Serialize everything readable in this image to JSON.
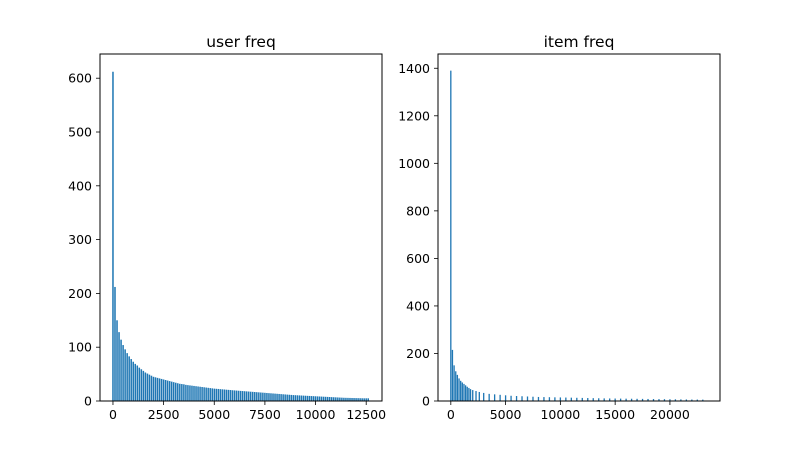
{
  "chart_data": [
    {
      "type": "bar",
      "title": "user freq",
      "xlabel": "",
      "ylabel": "",
      "xlim": [
        -640,
        13280
      ],
      "ylim": [
        0,
        645
      ],
      "xticks": [
        0,
        2500,
        5000,
        7500,
        10000,
        12500
      ],
      "xtick_labels": [
        "0",
        "2500",
        "5000",
        "7500",
        "10000",
        "12500"
      ],
      "yticks": [
        0,
        100,
        200,
        300,
        400,
        500,
        600
      ],
      "ytick_labels": [
        "0",
        "100",
        "200",
        "300",
        "400",
        "500",
        "600"
      ],
      "grid": false,
      "legend": "none",
      "bar_color": "#1f77b4",
      "bar_width": 75,
      "x": [
        0,
        100,
        200,
        300,
        400,
        500,
        600,
        700,
        800,
        900,
        1000,
        1100,
        1200,
        1300,
        1400,
        1500,
        1600,
        1700,
        1800,
        1900,
        2000,
        2100,
        2200,
        2300,
        2400,
        2500,
        2600,
        2700,
        2800,
        2900,
        3000,
        3100,
        3200,
        3300,
        3400,
        3500,
        3600,
        3700,
        3800,
        3900,
        4000,
        4100,
        4200,
        4300,
        4400,
        4500,
        4600,
        4700,
        4800,
        4900,
        5000,
        5100,
        5200,
        5300,
        5400,
        5500,
        5600,
        5700,
        5800,
        5900,
        6000,
        6100,
        6200,
        6300,
        6400,
        6500,
        6600,
        6700,
        6800,
        6900,
        7000,
        7100,
        7200,
        7300,
        7400,
        7500,
        7600,
        7700,
        7800,
        7900,
        8000,
        8100,
        8200,
        8300,
        8400,
        8500,
        8600,
        8700,
        8800,
        8900,
        9000,
        9100,
        9200,
        9300,
        9400,
        9500,
        9600,
        9700,
        9800,
        9900,
        10000,
        10100,
        10200,
        10300,
        10400,
        10500,
        10600,
        10700,
        10800,
        10900,
        11000,
        11100,
        11200,
        11300,
        11400,
        11500,
        11600,
        11700,
        11800,
        11900,
        12000,
        12100,
        12200,
        12300,
        12400,
        12500,
        12600
      ],
      "values": [
        612,
        212,
        150,
        128,
        114,
        104,
        96,
        89,
        83,
        78,
        73,
        69,
        66,
        62,
        59,
        56,
        53,
        51,
        49,
        47,
        45,
        44,
        43,
        42,
        41,
        40,
        39,
        38,
        37,
        36,
        35,
        34,
        33,
        32,
        31.5,
        31,
        30,
        29.5,
        29,
        28.5,
        28,
        27.5,
        27,
        26.5,
        26,
        25.5,
        25,
        24.5,
        24,
        23.5,
        23,
        22.7,
        22.4,
        22,
        21.7,
        21.4,
        21,
        20.7,
        20.4,
        20,
        19.7,
        19.4,
        19.1,
        18.8,
        18.5,
        18.2,
        17.9,
        17.6,
        17.3,
        17,
        16.7,
        16.4,
        16.1,
        15.8,
        15.5,
        15.2,
        14.9,
        14.6,
        14.3,
        14,
        13.7,
        13.4,
        13.1,
        12.8,
        12.5,
        12.2,
        11.9,
        11.6,
        11.3,
        11,
        10.8,
        10.6,
        10.4,
        10.2,
        10,
        9.8,
        9.6,
        9.4,
        9.2,
        9,
        8.8,
        8.6,
        8.4,
        8.2,
        8,
        7.8,
        7.6,
        7.4,
        7.2,
        7,
        6.8,
        6.6,
        6.4,
        6.2,
        6,
        5.9,
        5.8,
        5.7,
        5.6,
        5.5,
        5.4,
        5.3,
        5.2,
        5.1,
        5,
        5,
        5
      ]
    },
    {
      "type": "bar",
      "title": "item freq",
      "xlabel": "",
      "ylabel": "",
      "xlim": [
        -1170,
        24570
      ],
      "ylim": [
        0,
        1460
      ],
      "xticks": [
        0,
        5000,
        10000,
        15000,
        20000
      ],
      "xtick_labels": [
        "0",
        "5000",
        "10000",
        "15000",
        "20000"
      ],
      "yticks": [
        0,
        200,
        400,
        600,
        800,
        1000,
        1200,
        1400
      ],
      "ytick_labels": [
        "0",
        "200",
        "400",
        "600",
        "800",
        "1000",
        "1200",
        "1400"
      ],
      "grid": false,
      "legend": "none",
      "bar_color": "#1f77b4",
      "bar_width": 120,
      "x": [
        0,
        150,
        300,
        450,
        600,
        750,
        900,
        1050,
        1200,
        1350,
        1500,
        1650,
        1800,
        2000,
        2300,
        2600,
        3000,
        3500,
        4000,
        4500,
        5000,
        5500,
        6000,
        6500,
        7000,
        7500,
        8000,
        8500,
        9000,
        9500,
        10000,
        10500,
        11000,
        11500,
        12000,
        12500,
        13000,
        13500,
        14000,
        14500,
        15000,
        15500,
        16000,
        16500,
        17000,
        17500,
        18000,
        18500,
        19000,
        19500,
        20000,
        20500,
        21000,
        21500,
        22000,
        22500,
        23000
      ],
      "values": [
        1390,
        215,
        150,
        125,
        110,
        95,
        85,
        78,
        72,
        66,
        60,
        55,
        50,
        46,
        42,
        38,
        34,
        30,
        28,
        26,
        24,
        22,
        21,
        20,
        19,
        18,
        17,
        16.5,
        16,
        15.5,
        15,
        14.5,
        14,
        13.5,
        13,
        12.5,
        12,
        11.5,
        11,
        10.7,
        10.4,
        10.1,
        9.8,
        9.5,
        9.2,
        8.9,
        8.6,
        8.3,
        8,
        7.7,
        7.4,
        7.1,
        6.8,
        6.5,
        6.2,
        6,
        5.8
      ]
    }
  ]
}
